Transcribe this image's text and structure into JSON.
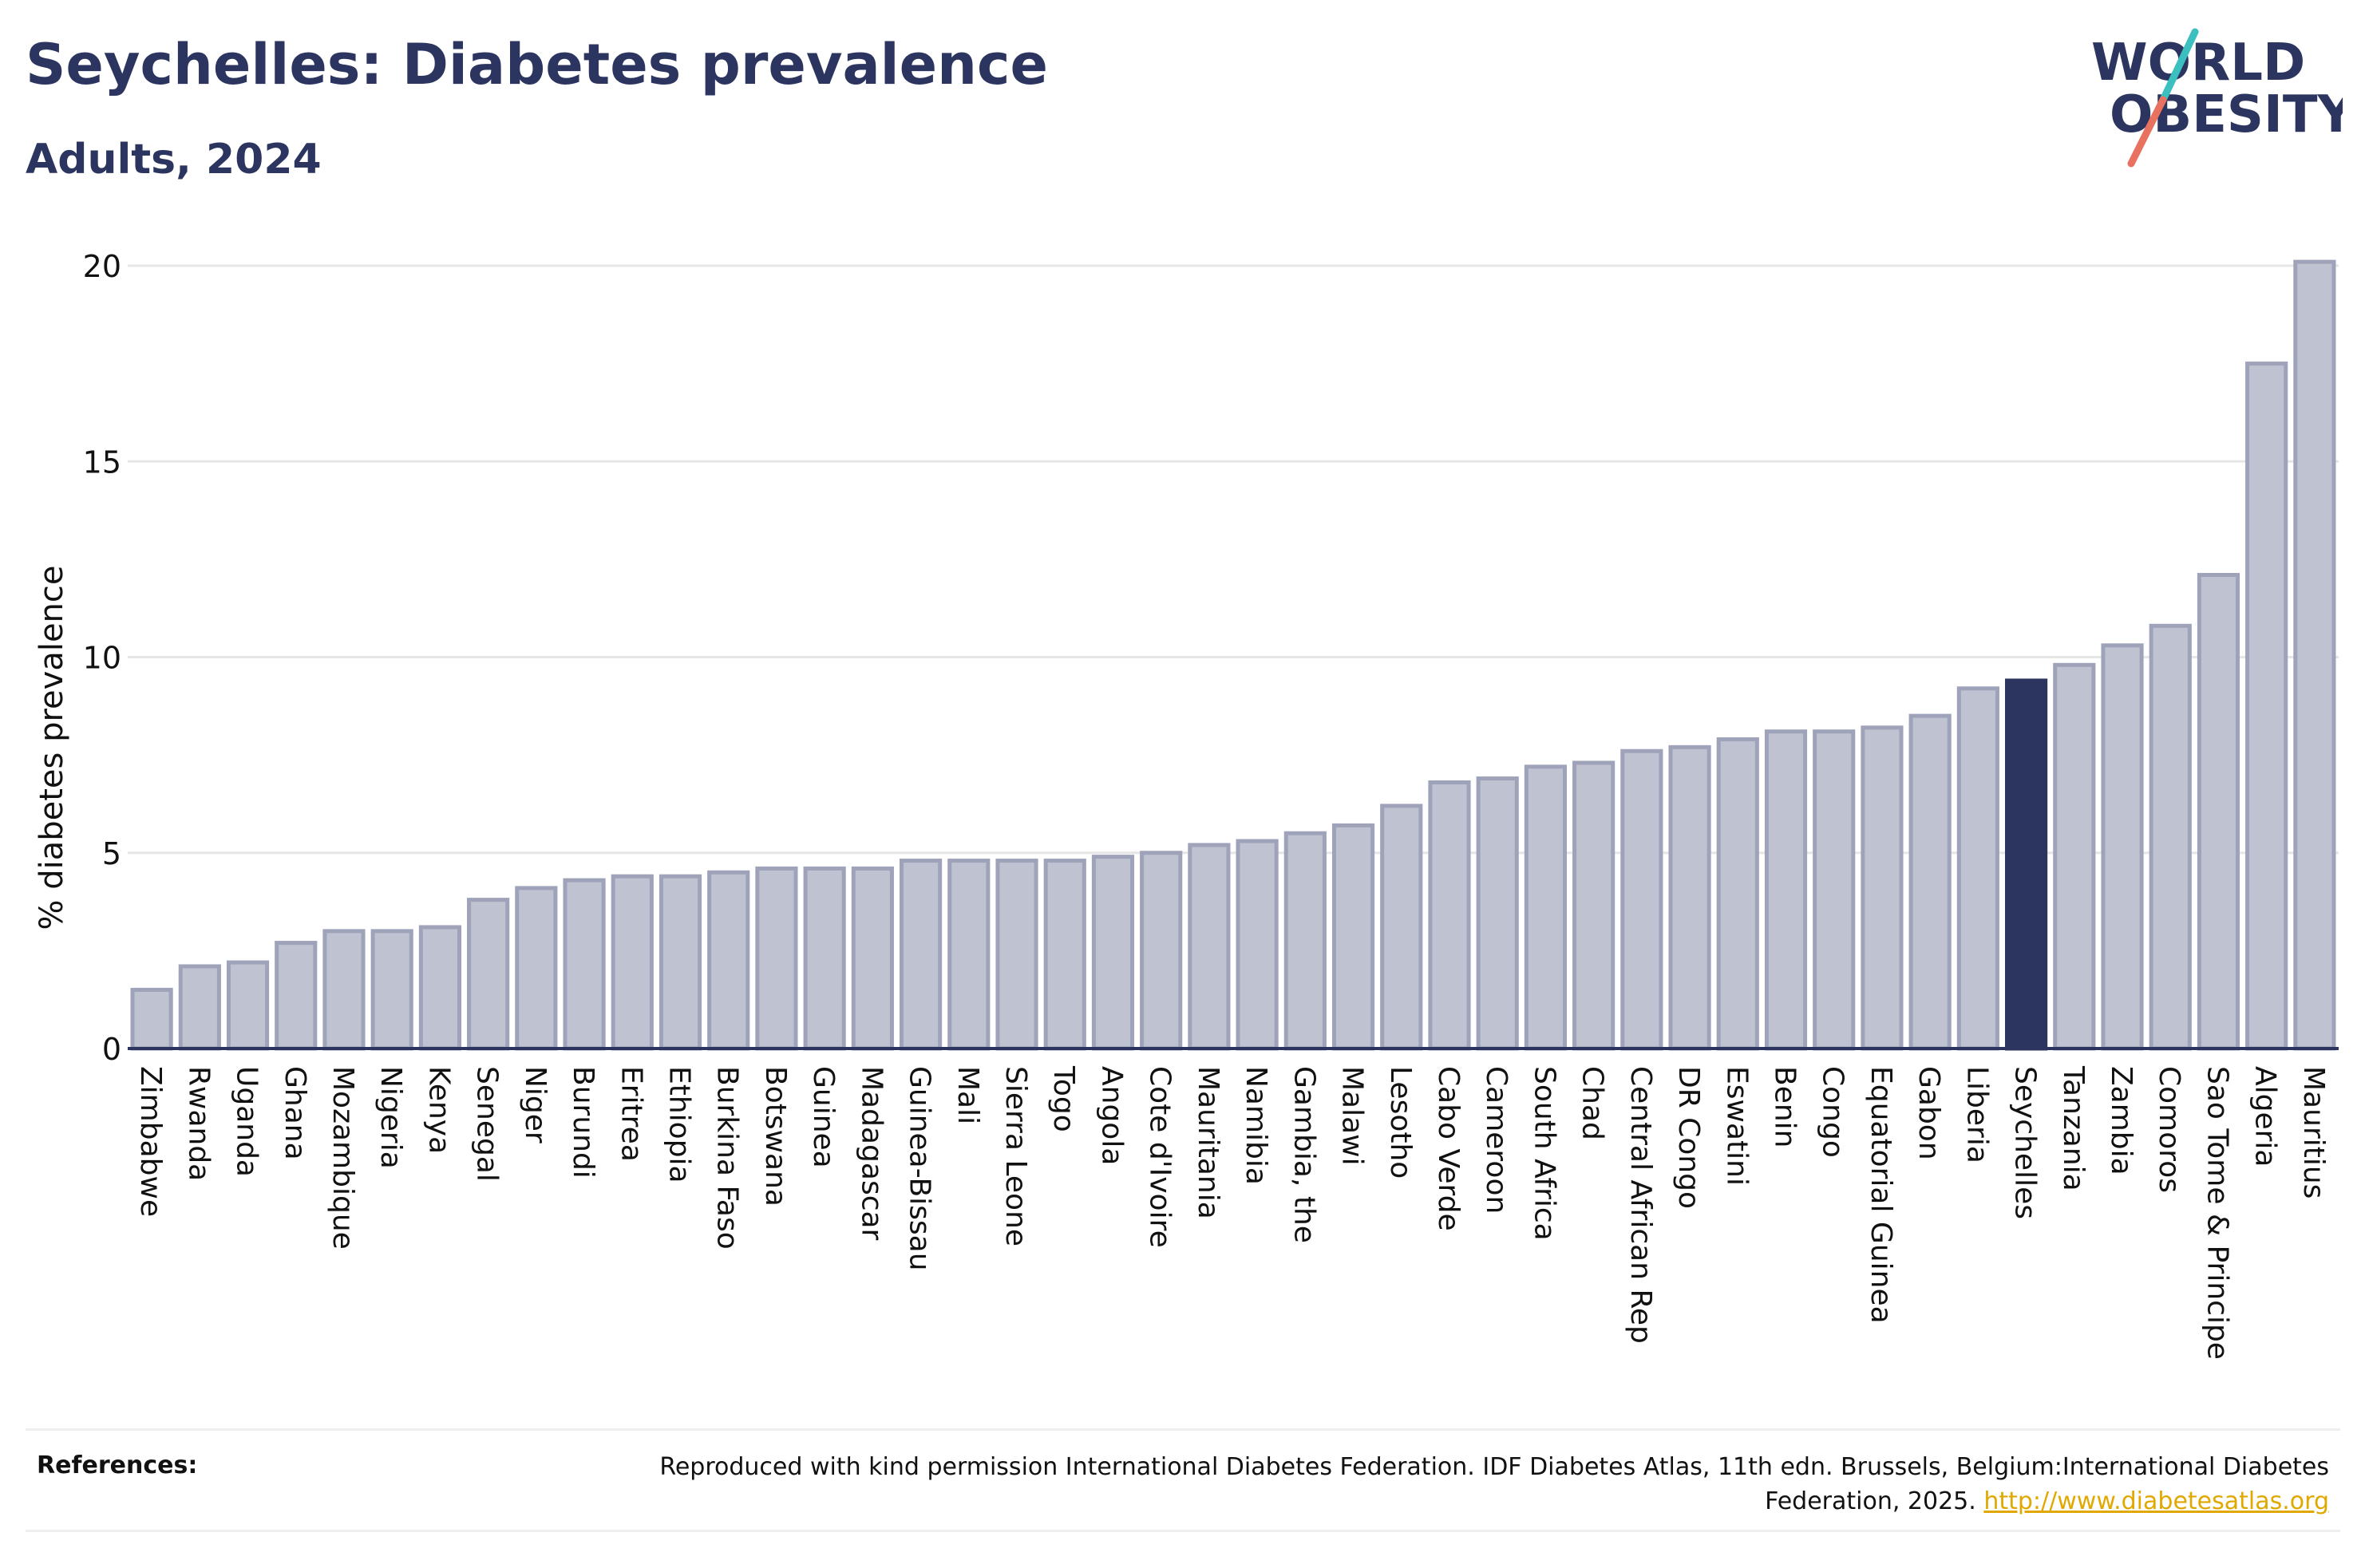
{
  "header": {
    "title": "Seychelles: Diabetes prevalence",
    "subtitle": "Adults, 2024"
  },
  "logo": {
    "line1": "WORLD",
    "line2": "OBESITY",
    "colors": {
      "text": "#2c355f",
      "slash_top": "#3bbfbf",
      "slash_bottom": "#e8715f"
    }
  },
  "colors": {
    "bar_fill": "#bfc2d0",
    "bar_stroke": "#9ea3ba",
    "highlight_fill": "#2c355f",
    "grid": "#e6e6e6",
    "axis": "#2c355f"
  },
  "chart_data": {
    "type": "bar",
    "ylabel": "% diabetes prevalence",
    "xlabel": "",
    "ylim": [
      0,
      20.5
    ],
    "yticks": [
      0,
      5,
      10,
      15,
      20
    ],
    "grid": true,
    "highlight": "Seychelles",
    "categories": [
      "Zimbabwe",
      "Rwanda",
      "Uganda",
      "Ghana",
      "Mozambique",
      "Nigeria",
      "Kenya",
      "Senegal",
      "Niger",
      "Burundi",
      "Eritrea",
      "Ethiopia",
      "Burkina Faso",
      "Botswana",
      "Guinea",
      "Madagascar",
      "Guinea-Bissau",
      "Mali",
      "Sierra Leone",
      "Togo",
      "Angola",
      "Cote d'Ivoire",
      "Mauritania",
      "Namibia",
      "Gambia, the",
      "Malawi",
      "Lesotho",
      "Cabo Verde",
      "Cameroon",
      "South Africa",
      "Chad",
      "Central African Rep",
      "DR Congo",
      "Eswatini",
      "Benin",
      "Congo",
      "Equatorial Guinea",
      "Gabon",
      "Liberia",
      "Seychelles",
      "Tanzania",
      "Zambia",
      "Comoros",
      "Sao Tome & Principe",
      "Algeria",
      "Mauritius"
    ],
    "values": [
      1.5,
      2.1,
      2.2,
      2.7,
      3.0,
      3.0,
      3.1,
      3.8,
      4.1,
      4.3,
      4.4,
      4.4,
      4.5,
      4.6,
      4.6,
      4.6,
      4.8,
      4.8,
      4.8,
      4.8,
      4.9,
      5.0,
      5.2,
      5.3,
      5.5,
      5.7,
      6.2,
      6.8,
      6.9,
      7.2,
      7.3,
      7.6,
      7.7,
      7.9,
      8.1,
      8.1,
      8.2,
      8.5,
      9.2,
      9.4,
      9.8,
      10.3,
      10.8,
      12.1,
      17.5,
      20.1
    ]
  },
  "references": {
    "label": "References:",
    "text": "Reproduced with kind permission International Diabetes Federation. IDF Diabetes Atlas, 11th edn. Brussels, Belgium:International Diabetes Federation, 2025. ",
    "link": "http://www.diabetesatlas.org"
  }
}
